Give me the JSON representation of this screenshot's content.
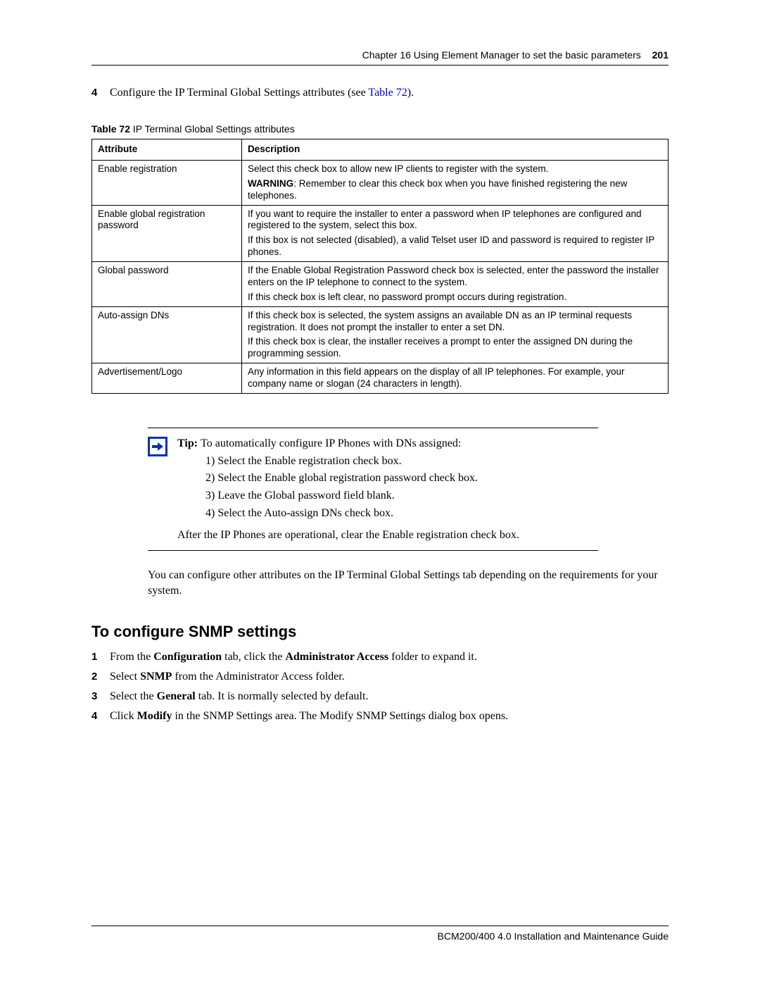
{
  "header": {
    "chapter": "Chapter 16  Using Element Manager to set the basic parameters",
    "page_number": "201"
  },
  "footer": {
    "text": "BCM200/400 4.0 Installation and Maintenance Guide"
  },
  "intro_step": {
    "number": "4",
    "text_prefix": "Configure the IP Terminal Global Settings attributes (see ",
    "link_text": "Table 72",
    "text_suffix": ")."
  },
  "table": {
    "caption_bold": "Table 72",
    "caption_rest": "   IP Terminal Global Settings attributes",
    "headers": {
      "attribute": "Attribute",
      "description": "Description"
    },
    "rows": [
      {
        "attribute": "Enable registration",
        "desc": [
          {
            "plain": "Select this check box to allow new IP clients to register with the system."
          },
          {
            "bold": "WARNING",
            "rest": ": Remember to clear this check box when you have finished registering the new telephones."
          }
        ]
      },
      {
        "attribute": "Enable global registration password",
        "desc": [
          {
            "plain": "If you want to require the installer to enter a password when IP telephones are configured and registered to the system, select this box."
          },
          {
            "plain": "If this box is not selected (disabled), a valid Telset user ID and password is required to register IP phones."
          }
        ]
      },
      {
        "attribute": "Global password",
        "desc": [
          {
            "plain": "If the Enable Global Registration Password check box is selected, enter the password the installer enters on the IP telephone to connect to the system."
          },
          {
            "plain": "If this check box is left clear, no password prompt occurs during registration."
          }
        ]
      },
      {
        "attribute": "Auto-assign DNs",
        "desc": [
          {
            "plain": "If this check box is selected, the system assigns an available DN as an IP terminal requests registration. It does not prompt the installer to enter a set DN."
          },
          {
            "plain": "If this check box is clear, the installer receives a prompt to enter the assigned DN during the programming session."
          }
        ]
      },
      {
        "attribute": "Advertisement/Logo",
        "desc": [
          {
            "plain": "Any information in this field appears on the display of all IP telephones. For example, your company name or slogan (24 characters in length)."
          }
        ]
      }
    ]
  },
  "tip": {
    "label": "Tip: ",
    "lead": "To automatically configure IP Phones with DNs assigned:",
    "steps": [
      "1) Select the Enable registration check box.",
      "2) Select the Enable global registration password check box.",
      "3) Leave the Global password field blank.",
      "4) Select the Auto-assign DNs check box."
    ],
    "after": "After the IP Phones are operational, clear the Enable registration check box."
  },
  "paragraph": "You can configure other attributes on the IP Terminal Global Settings tab depending on the requirements for your system.",
  "section_heading": "To configure SNMP settings",
  "snmp_steps": [
    {
      "num": "1",
      "pre": "From the ",
      "b1": "Configuration",
      "mid": " tab, click the ",
      "b2": "Administrator Access",
      "post": " folder to expand it."
    },
    {
      "num": "2",
      "pre": "Select ",
      "b1": "SNMP",
      "mid": " from the Administrator Access folder.",
      "b2": "",
      "post": ""
    },
    {
      "num": "3",
      "pre": "Select the ",
      "b1": "General",
      "mid": " tab. It is normally selected by default.",
      "b2": "",
      "post": ""
    },
    {
      "num": "4",
      "pre": "Click ",
      "b1": "Modify",
      "mid": " in the SNMP Settings area. The Modify SNMP Settings dialog box opens.",
      "b2": "",
      "post": ""
    }
  ],
  "colors": {
    "link": "#0000d0",
    "icon_border": "#0030b8"
  }
}
